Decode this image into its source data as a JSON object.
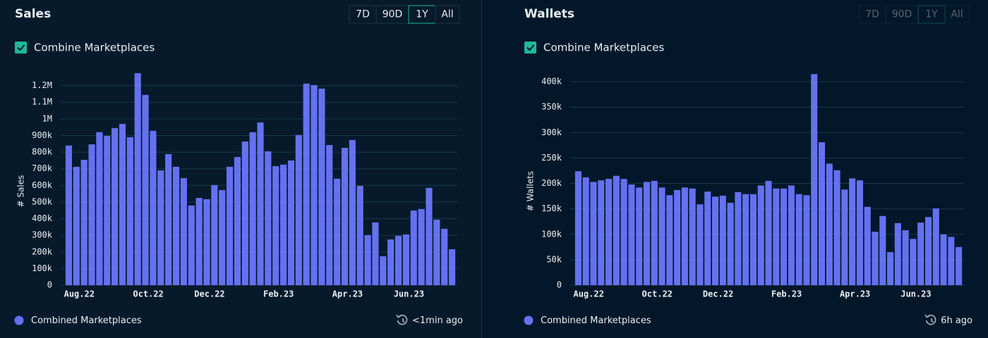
{
  "chart_data": [
    {
      "type": "bar",
      "title": "Sales",
      "ylabel": "# Sales",
      "categories": [
        null,
        "Aug.22",
        null,
        null,
        null,
        null,
        null,
        null,
        null,
        null,
        "Oct.22",
        null,
        null,
        null,
        null,
        null,
        null,
        null,
        "Dec.22",
        null,
        null,
        null,
        null,
        null,
        null,
        null,
        null,
        "Feb.23",
        null,
        null,
        null,
        null,
        null,
        null,
        null,
        null,
        "Apr.23",
        null,
        null,
        null,
        null,
        null,
        null,
        null,
        "Jun.23",
        null,
        null,
        null,
        null,
        null,
        null
      ],
      "series": [
        {
          "name": "Combined Marketplaces",
          "color": "#6571f0",
          "values": [
            840000,
            712000,
            754000,
            847000,
            920000,
            898000,
            945000,
            970000,
            890000,
            1275000,
            1144000,
            928000,
            690000,
            788000,
            712000,
            644000,
            479000,
            525000,
            517000,
            602000,
            572000,
            712000,
            771000,
            864000,
            920000,
            979000,
            805000,
            716000,
            725000,
            750000,
            903000,
            1212000,
            1203000,
            1182000,
            843000,
            640000,
            826000,
            873000,
            597000,
            301000,
            377000,
            174000,
            275000,
            297000,
            305000,
            449000,
            458000,
            585000,
            394000,
            339000,
            216000
          ]
        }
      ],
      "ylim": [
        0,
        1300000
      ],
      "yticks": [
        0,
        {
          "value": 100000,
          "label": "100k"
        },
        {
          "value": 200000,
          "label": "200k"
        },
        {
          "value": 300000,
          "label": "300k"
        },
        {
          "value": 400000,
          "label": "400k"
        },
        {
          "value": 500000,
          "label": "500k"
        },
        {
          "value": 600000,
          "label": "600k"
        },
        {
          "value": 700000,
          "label": "700k"
        },
        {
          "value": 800000,
          "label": "800k"
        },
        {
          "value": 900000,
          "label": "900k"
        },
        {
          "value": 1000000,
          "label": "1M"
        },
        {
          "value": 1100000,
          "label": "1.1M"
        },
        {
          "value": 1200000,
          "label": "1.2M"
        }
      ],
      "grid": true
    },
    {
      "type": "bar",
      "title": "Wallets",
      "ylabel": "# Wallets",
      "categories": [
        null,
        "Aug.22",
        null,
        null,
        null,
        null,
        null,
        null,
        null,
        null,
        "Oct.22",
        null,
        null,
        null,
        null,
        null,
        null,
        null,
        "Dec.22",
        null,
        null,
        null,
        null,
        null,
        null,
        null,
        null,
        "Feb.23",
        null,
        null,
        null,
        null,
        null,
        null,
        null,
        null,
        "Apr.23",
        null,
        null,
        null,
        null,
        null,
        null,
        null,
        "Jun.23",
        null,
        null,
        null,
        null,
        null,
        null
      ],
      "series": [
        {
          "name": "Combined Marketplaces",
          "color": "#6571f0",
          "values": [
            224000,
            212000,
            203000,
            206000,
            209000,
            215000,
            209000,
            198000,
            192000,
            203000,
            205000,
            192000,
            177000,
            187000,
            192000,
            190000,
            159000,
            184000,
            174000,
            176000,
            162000,
            183000,
            179000,
            179000,
            196000,
            205000,
            190000,
            190000,
            196000,
            179000,
            177000,
            415000,
            281000,
            239000,
            226000,
            188000,
            210000,
            206000,
            154000,
            105000,
            136000,
            65000,
            122000,
            108000,
            91000,
            123000,
            134000,
            151000,
            100000,
            95000,
            75000
          ]
        }
      ],
      "ylim": [
        0,
        425000
      ],
      "yticks": [
        0,
        {
          "value": 50000,
          "label": "50k"
        },
        {
          "value": 100000,
          "label": "100k"
        },
        {
          "value": 150000,
          "label": "150k"
        },
        {
          "value": 200000,
          "label": "200k"
        },
        {
          "value": 250000,
          "label": "250k"
        },
        {
          "value": 300000,
          "label": "300k"
        },
        {
          "value": 350000,
          "label": "350k"
        },
        {
          "value": 400000,
          "label": "400k"
        }
      ],
      "grid": true
    }
  ],
  "panels": [
    {
      "range_buttons": [
        "7D",
        "90D",
        "1Y",
        "All"
      ],
      "selected_range": "1Y",
      "enabled": true,
      "checkbox_label": "Combine Marketplaces",
      "updated": "<1min ago"
    },
    {
      "range_buttons": [
        "7D",
        "90D",
        "1Y",
        "All"
      ],
      "selected_range": "1Y",
      "enabled": false,
      "checkbox_label": "Combine Marketplaces",
      "updated": "6h ago"
    }
  ]
}
